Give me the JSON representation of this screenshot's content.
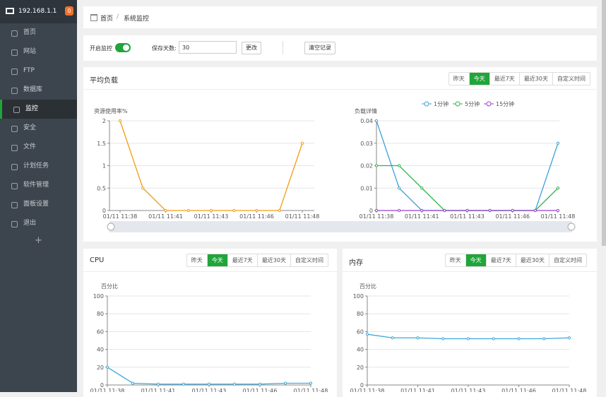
{
  "sidebar": {
    "host": "192.168.1.1",
    "badge": "0",
    "items": [
      "首页",
      "网站",
      "FTP",
      "数据库",
      "监控",
      "安全",
      "文件",
      "计划任务",
      "软件管理",
      "面板设置",
      "退出"
    ],
    "active": 4,
    "add": "+"
  },
  "breadcrumb": {
    "home": "首页",
    "separator": "/",
    "current": "系统监控"
  },
  "settings": {
    "monitor_label": "开启监控",
    "monitor_enabled": true,
    "days_label": "保存天数:",
    "days_value": "30",
    "change_button": "更改",
    "clear_button": "清空记录"
  },
  "load_panel": {
    "title": "平均负载",
    "tabs": [
      "昨天",
      "今天",
      "最近7天",
      "最近30天",
      "自定义时间"
    ],
    "active_tab": 1,
    "charts": [
      {
        "type": "line",
        "y_label": "资源使用率%",
        "categories": [
          "01/11 11:38",
          null,
          "01/11 11:41",
          null,
          "01/11 11:43",
          null,
          "01/11 11:46",
          null,
          "01/11 11:48"
        ],
        "values": [
          2,
          0.5,
          0,
          0,
          0,
          0,
          0,
          0,
          1.5
        ],
        "color": "#f39c12",
        "ylim": [
          0,
          2
        ],
        "yticks": [
          0,
          0.5,
          1,
          1.5,
          2
        ],
        "grid": true
      },
      {
        "type": "line",
        "y_label": "负载详情",
        "categories": [
          "01/11 11:38",
          null,
          "01/11 11:41",
          null,
          "01/11 11:43",
          null,
          "01/11 11:46",
          null,
          "01/11 11:48"
        ],
        "series": [
          {
            "name": "1分钟",
            "color": "#3ea0dc",
            "values": [
              0.04,
              0.01,
              0,
              0,
              0,
              0,
              0,
              0,
              0.03
            ]
          },
          {
            "name": "5分钟",
            "color": "#2bb74a",
            "values": [
              0.02,
              0.02,
              0.01,
              0,
              0,
              0,
              0,
              0,
              0.01
            ]
          },
          {
            "name": "15分钟",
            "color": "#9b3fd1",
            "values": [
              0,
              0,
              0,
              0,
              0,
              0,
              0,
              0,
              0
            ]
          }
        ],
        "ylim": [
          0,
          0.04
        ],
        "yticks": [
          0,
          0.01,
          0.02,
          0.03,
          0.04
        ],
        "grid": true
      }
    ]
  },
  "cpu_panel": {
    "title": "CPU",
    "tabs": [
      "昨天",
      "今天",
      "最近7天",
      "最近30天",
      "自定义时间"
    ],
    "active_tab": 1,
    "chart": {
      "type": "line",
      "y_label": "百分比",
      "categories": [
        "01/11 11:38",
        null,
        "01/11 11:41",
        null,
        "01/11 11:43",
        null,
        "01/11 11:46",
        null,
        "01/11 11:48"
      ],
      "values": [
        20,
        2,
        1,
        1,
        1,
        1,
        1,
        2,
        2
      ],
      "color": "#3ea8d8",
      "ylim": [
        0,
        100
      ],
      "yticks": [
        0,
        20,
        40,
        60,
        80,
        100
      ],
      "grid": true
    }
  },
  "memory_panel": {
    "title": "内存",
    "tabs": [
      "昨天",
      "今天",
      "最近7天",
      "最近30天",
      "自定义时间"
    ],
    "active_tab": 1,
    "chart": {
      "type": "line",
      "y_label": "百分比",
      "categories": [
        "01/11 11:38",
        null,
        "01/11 11:41",
        null,
        "01/11 11:43",
        null,
        "01/11 11:46",
        null,
        "01/11 11:48"
      ],
      "values": [
        57,
        53,
        53,
        52,
        52,
        52,
        52,
        52,
        53
      ],
      "color": "#3ea8d8",
      "ylim": [
        0,
        100
      ],
      "yticks": [
        0,
        20,
        40,
        60,
        80,
        100
      ],
      "grid": true
    }
  }
}
